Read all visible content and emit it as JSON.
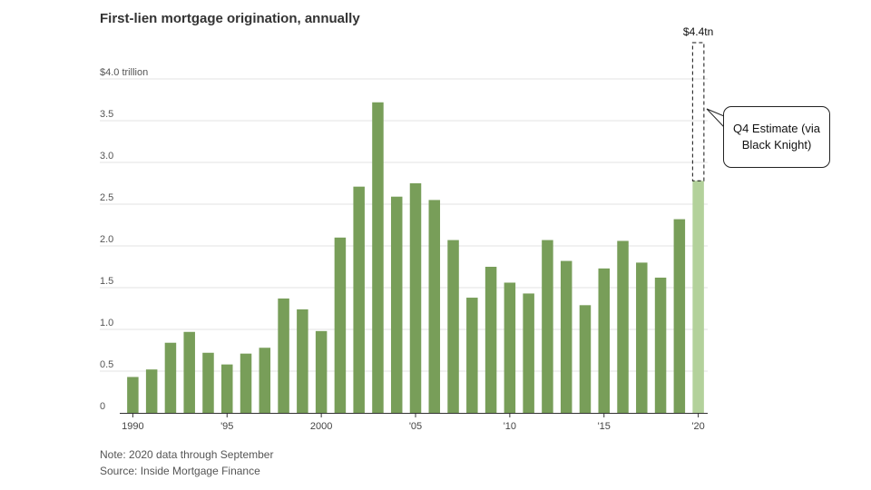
{
  "title": "First-lien mortgage origination, annually",
  "note": "Note: 2020 data through September",
  "source": "Source: Inside Mortgage Finance",
  "callout": {
    "text": "Q4 Estimate (via Black Knight)",
    "total_label": "$4.4tn",
    "total_value": 4.4
  },
  "colors": {
    "bar": "#789e59",
    "bar_estimate": "#b3d19b",
    "grid": "#e3e3e3",
    "axis": "#333333"
  },
  "chart_data": {
    "type": "bar",
    "title": "First-lien mortgage origination, annually",
    "x": [
      1990,
      1991,
      1992,
      1993,
      1994,
      1995,
      1996,
      1997,
      1998,
      1999,
      2000,
      2001,
      2002,
      2003,
      2004,
      2005,
      2006,
      2007,
      2008,
      2009,
      2010,
      2011,
      2012,
      2013,
      2014,
      2015,
      2016,
      2017,
      2018,
      2019,
      2020
    ],
    "values": [
      0.43,
      0.52,
      0.84,
      0.97,
      0.72,
      0.58,
      0.71,
      0.78,
      1.37,
      1.24,
      0.98,
      2.1,
      2.71,
      3.72,
      2.59,
      2.75,
      2.55,
      2.07,
      1.38,
      1.75,
      1.56,
      1.43,
      2.07,
      1.82,
      1.29,
      1.73,
      2.06,
      1.8,
      1.62,
      2.32,
      2.78
    ],
    "tick_labels": [
      {
        "x": 1990,
        "label": "1990"
      },
      {
        "x": 1995,
        "label": "'95"
      },
      {
        "x": 2000,
        "label": "2000"
      },
      {
        "x": 2005,
        "label": "'05"
      },
      {
        "x": 2010,
        "label": "'10"
      },
      {
        "x": 2015,
        "label": "'15"
      },
      {
        "x": 2020,
        "label": "'20"
      }
    ],
    "y_ticks": [
      {
        "value": 0,
        "label": "0"
      },
      {
        "value": 0.5,
        "label": "0.5"
      },
      {
        "value": 1.0,
        "label": "1.0"
      },
      {
        "value": 1.5,
        "label": "1.5"
      },
      {
        "value": 2.0,
        "label": "2.0"
      },
      {
        "value": 2.5,
        "label": "2.5"
      },
      {
        "value": 3.0,
        "label": "3.0"
      },
      {
        "value": 3.5,
        "label": "3.5"
      },
      {
        "value": 4.0,
        "label": "$4.0 trillion"
      }
    ],
    "ylim": [
      0,
      4.0
    ],
    "grid": true
  }
}
